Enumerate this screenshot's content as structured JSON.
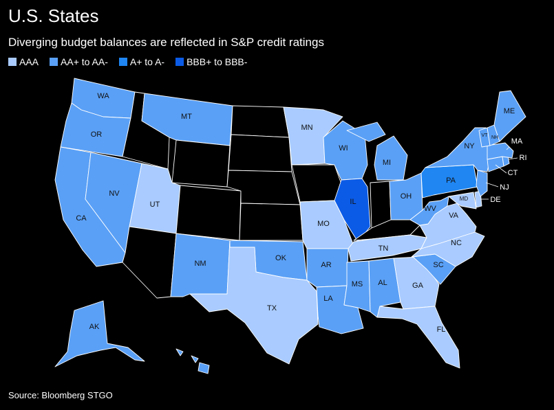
{
  "header": {
    "title": "U.S. States",
    "subtitle": "Diverging budget balances are reflected in S&P credit ratings"
  },
  "legend": [
    {
      "key": "aaa",
      "label": "AAA",
      "color": "#a9cbff"
    },
    {
      "key": "aa",
      "label": "AA+ to AA-",
      "color": "#5aa0f6"
    },
    {
      "key": "a",
      "label": "A+ to A-",
      "color": "#1f86f2"
    },
    {
      "key": "bbb",
      "label": "BBB+ to BBB-",
      "color": "#0b5be6"
    }
  ],
  "no_rating_color": "#000000",
  "border_color": "#ffffff",
  "labels": {
    "WA": "WA",
    "OR": "OR",
    "CA": "CA",
    "NV": "NV",
    "UT": "UT",
    "MT": "MT",
    "NM": "NM",
    "TX": "TX",
    "OK": "OK",
    "AR": "AR",
    "LA": "LA",
    "MS": "MS",
    "AL": "AL",
    "GA": "GA",
    "FL": "FL",
    "SC": "SC",
    "NC": "NC",
    "TN": "TN",
    "VA": "VA",
    "WV": "WV",
    "MO": "MO",
    "MN": "MN",
    "WI": "WI",
    "MI": "MI",
    "IL": "IL",
    "OH": "OH",
    "PA": "PA",
    "NY": "NY",
    "VT": "VT",
    "NH": "NH",
    "ME": "ME",
    "MA": "MA",
    "RI": "RI",
    "CT": "CT",
    "NJ": "NJ",
    "DE": "DE",
    "MD": "MD",
    "AK": "AK"
  },
  "source": "Source: Bloomberg STGO"
}
